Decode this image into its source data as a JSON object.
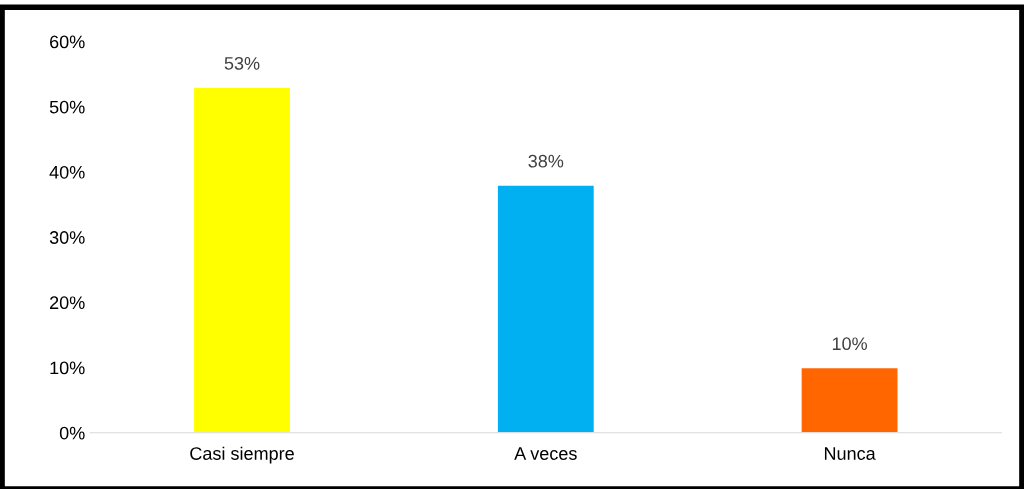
{
  "chart_data": {
    "type": "bar",
    "categories": [
      "Casi siempre",
      "A veces",
      "Nunca"
    ],
    "values": [
      53,
      38,
      10
    ],
    "colors": [
      "#ffff00",
      "#00b0f0",
      "#ff6600"
    ],
    "value_labels": [
      "53%",
      "38%",
      "10%"
    ],
    "ylim": [
      0,
      60
    ],
    "yticks": [
      {
        "value": 0,
        "label": "0%"
      },
      {
        "value": 10,
        "label": "10%"
      },
      {
        "value": 20,
        "label": "20%"
      },
      {
        "value": 30,
        "label": "30%"
      },
      {
        "value": 40,
        "label": "40%"
      },
      {
        "value": 50,
        "label": "50%"
      },
      {
        "value": 60,
        "label": "60%"
      }
    ],
    "grid": false,
    "legend": false
  }
}
